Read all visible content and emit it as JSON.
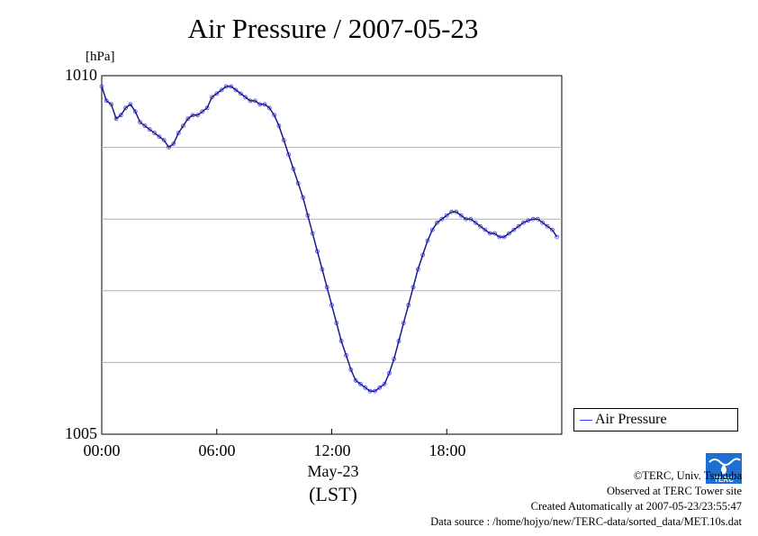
{
  "chart_data": {
    "type": "line",
    "title": "Air Pressure / 2007-05-23",
    "ylabel": "[hPa]",
    "xlabel": "May-23",
    "xlabel2": "(LST)",
    "ylim": [
      1005,
      1010
    ],
    "xlim_hours": [
      0,
      24
    ],
    "yticks": [
      "1010",
      "1005"
    ],
    "xticks": [
      "00:00",
      "06:00",
      "12:00",
      "18:00"
    ],
    "xtick_hours": [
      0,
      6,
      12,
      18
    ],
    "grid": "horizontal",
    "legend_position": "right",
    "series": [
      {
        "name": "Air Pressure",
        "color": "#3b3bff",
        "x_hours": [
          0.0,
          0.25,
          0.5,
          0.75,
          1.0,
          1.25,
          1.5,
          1.75,
          2.0,
          2.25,
          2.5,
          2.75,
          3.0,
          3.25,
          3.5,
          3.75,
          4.0,
          4.25,
          4.5,
          4.75,
          5.0,
          5.25,
          5.5,
          5.75,
          6.0,
          6.25,
          6.5,
          6.75,
          7.0,
          7.25,
          7.5,
          7.75,
          8.0,
          8.25,
          8.5,
          8.75,
          9.0,
          9.25,
          9.5,
          9.75,
          10.0,
          10.25,
          10.5,
          10.75,
          11.0,
          11.25,
          11.5,
          11.75,
          12.0,
          12.25,
          12.5,
          12.75,
          13.0,
          13.25,
          13.5,
          13.75,
          14.0,
          14.25,
          14.5,
          14.75,
          15.0,
          15.25,
          15.5,
          15.75,
          16.0,
          16.25,
          16.5,
          16.75,
          17.0,
          17.25,
          17.5,
          17.75,
          18.0,
          18.25,
          18.5,
          18.75,
          19.0,
          19.25,
          19.5,
          19.75,
          20.0,
          20.25,
          20.5,
          20.75,
          21.0,
          21.25,
          21.5,
          21.75,
          22.0,
          22.25,
          22.5,
          22.75,
          23.0,
          23.25,
          23.5,
          23.75
        ],
        "values": [
          1009.85,
          1009.65,
          1009.6,
          1009.4,
          1009.45,
          1009.55,
          1009.6,
          1009.5,
          1009.35,
          1009.3,
          1009.25,
          1009.2,
          1009.15,
          1009.1,
          1009.0,
          1009.05,
          1009.2,
          1009.3,
          1009.4,
          1009.45,
          1009.45,
          1009.5,
          1009.55,
          1009.7,
          1009.75,
          1009.8,
          1009.85,
          1009.85,
          1009.8,
          1009.75,
          1009.7,
          1009.65,
          1009.65,
          1009.6,
          1009.6,
          1009.55,
          1009.45,
          1009.3,
          1009.1,
          1008.9,
          1008.7,
          1008.5,
          1008.3,
          1008.05,
          1007.8,
          1007.55,
          1007.3,
          1007.05,
          1006.8,
          1006.55,
          1006.3,
          1006.1,
          1005.9,
          1005.75,
          1005.7,
          1005.65,
          1005.6,
          1005.6,
          1005.65,
          1005.7,
          1005.85,
          1006.05,
          1006.3,
          1006.55,
          1006.8,
          1007.05,
          1007.3,
          1007.5,
          1007.7,
          1007.85,
          1007.95,
          1008.0,
          1008.05,
          1008.1,
          1008.1,
          1008.05,
          1008.0,
          1008.0,
          1007.95,
          1007.9,
          1007.85,
          1007.8,
          1007.8,
          1007.75,
          1007.75,
          1007.8,
          1007.85,
          1007.9,
          1007.95,
          1007.98,
          1008.0,
          1008.0,
          1007.95,
          1007.9,
          1007.85,
          1007.75
        ]
      }
    ]
  },
  "legend": {
    "label": "Air Pressure"
  },
  "credits": {
    "copyright": "©TERC, Univ. Tsukuba",
    "observed": "Observed at TERC Tower site",
    "created": "Created Automatically at 2007-05-23/23:55:47",
    "source": "Data source : /home/hojyo/new/TERC-data/sorted_data/MET.10s.dat"
  },
  "logo": {
    "text": "TERC",
    "color": "#1e6fd0"
  }
}
